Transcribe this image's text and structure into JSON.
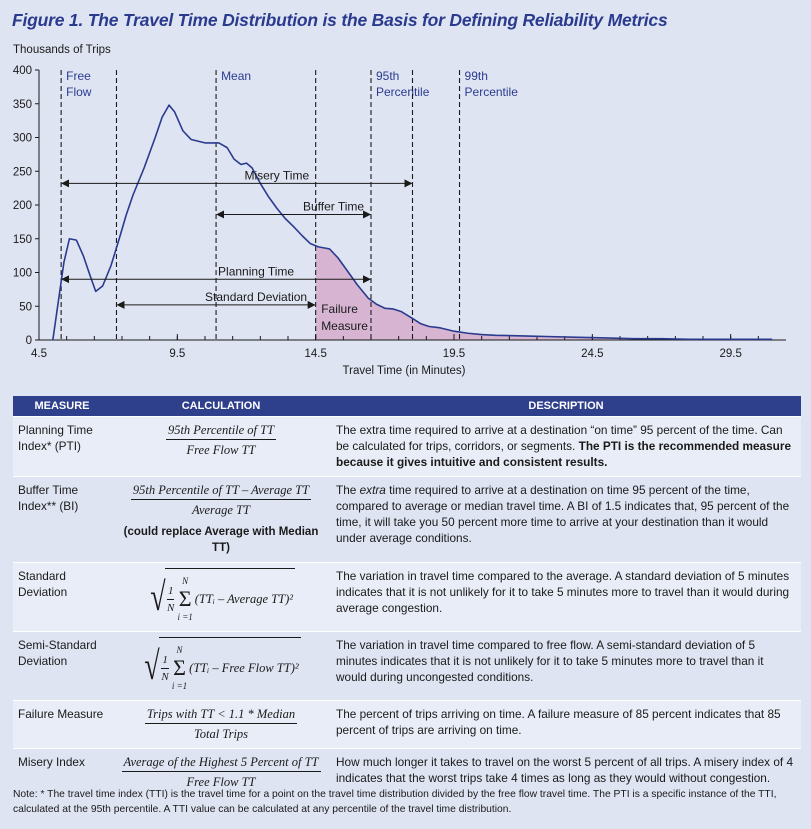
{
  "title": "Figure 1.  The Travel Time Distribution is the Basis for Defining Reliability Metrics",
  "chart_data": {
    "type": "area",
    "ylabel": "Thousands of Trips",
    "xlabel": "Travel Time (in Minutes)",
    "xlim": [
      4.5,
      31.5
    ],
    "ylim": [
      0,
      400
    ],
    "x_ticks": [
      "4.5",
      "9.5",
      "14.5",
      "19.5",
      "24.5",
      "29.5"
    ],
    "y_ticks": [
      "0",
      "50",
      "100",
      "150",
      "200",
      "250",
      "300",
      "350",
      "400"
    ],
    "series": [
      {
        "points": [
          [
            5.0,
            0
          ],
          [
            5.4,
            115
          ],
          [
            5.6,
            150
          ],
          [
            5.85,
            148
          ],
          [
            6.1,
            125
          ],
          [
            6.35,
            95
          ],
          [
            6.55,
            72
          ],
          [
            6.8,
            80
          ],
          [
            7.1,
            110
          ],
          [
            7.4,
            150
          ],
          [
            7.65,
            185
          ],
          [
            7.9,
            215
          ],
          [
            8.3,
            255
          ],
          [
            8.7,
            300
          ],
          [
            8.95,
            330
          ],
          [
            9.2,
            348
          ],
          [
            9.4,
            338
          ],
          [
            9.7,
            310
          ],
          [
            10.0,
            297
          ],
          [
            10.5,
            292
          ],
          [
            11.0,
            292
          ],
          [
            11.3,
            285
          ],
          [
            11.55,
            268
          ],
          [
            11.8,
            260
          ],
          [
            12.0,
            262
          ],
          [
            12.2,
            255
          ],
          [
            12.5,
            232
          ],
          [
            12.8,
            212
          ],
          [
            13.1,
            195
          ],
          [
            13.4,
            180
          ],
          [
            13.7,
            168
          ],
          [
            14.0,
            155
          ],
          [
            14.3,
            143
          ],
          [
            14.6,
            138
          ],
          [
            15.0,
            135
          ],
          [
            15.3,
            122
          ],
          [
            15.6,
            105
          ],
          [
            16.0,
            82
          ],
          [
            16.4,
            62
          ],
          [
            16.7,
            53
          ],
          [
            17.0,
            47
          ],
          [
            17.3,
            46
          ],
          [
            17.6,
            42
          ],
          [
            18.0,
            32
          ],
          [
            18.3,
            24
          ],
          [
            18.6,
            20
          ],
          [
            19.0,
            18
          ],
          [
            19.5,
            13
          ],
          [
            20.0,
            10
          ],
          [
            20.5,
            8
          ],
          [
            21.0,
            7
          ],
          [
            22.0,
            6
          ],
          [
            23.0,
            5
          ],
          [
            24.0,
            4
          ],
          [
            25.0,
            3
          ],
          [
            26.0,
            2
          ],
          [
            27.0,
            2
          ],
          [
            28.0,
            1
          ],
          [
            29.0,
            1
          ],
          [
            30.0,
            1
          ],
          [
            31.0,
            1
          ]
        ]
      }
    ],
    "failure_region_start": 14.5,
    "markers": [
      {
        "x": 5.3,
        "label": "Free Flow",
        "line_top": 400
      },
      {
        "x": 7.3,
        "label": "",
        "line_top": 400
      },
      {
        "x": 10.9,
        "label": "Mean",
        "line_top": 400
      },
      {
        "x": 14.5,
        "label": "",
        "line_top": 400
      },
      {
        "x": 16.5,
        "label": "95th Percentile",
        "line_top": 400
      },
      {
        "x": 18.0,
        "label": "",
        "line_top": 400
      },
      {
        "x": 19.7,
        "label": "99th Percentile",
        "line_top": 400
      }
    ],
    "arrows": [
      {
        "label": "Misery Time",
        "x1": 5.3,
        "x2": 18.0,
        "y": 232
      },
      {
        "label": "Buffer Time",
        "x1": 10.9,
        "x2": 16.5,
        "y": 186
      },
      {
        "label": "Planning Time",
        "x1": 5.3,
        "x2": 16.5,
        "y": 90
      },
      {
        "label": "Standard Deviation",
        "x1": 7.3,
        "x2": 14.5,
        "y": 52
      }
    ],
    "annotations": [
      {
        "text": "Failure",
        "x": 14.7,
        "y": 40
      },
      {
        "text": "Measure",
        "x": 14.7,
        "y": 15
      }
    ],
    "colors": {
      "curve": "#2a3b8f",
      "failure_fill": "#d7b5d2",
      "arrow": "#1a1a1a",
      "marker_text": "#2a3b8f"
    }
  },
  "table": {
    "headers": [
      "MEASURE",
      "CALCULATION",
      "DESCRIPTION"
    ],
    "rows": [
      {
        "measure": "Planning Time Index* (PTI)",
        "calc_num": "95th Percentile of TT",
        "calc_den": "Free Flow TT",
        "desc": "The extra time required to arrive at a destination “on time” 95 percent of the time. Can be calculated for trips, corridors, or segments.",
        "desc_bold": "The PTI is the recommended measure because it gives intuitive and consistent results."
      },
      {
        "measure": "Buffer Time Index** (BI)",
        "calc_num": "95th Percentile of TT – Average TT",
        "calc_den": "Average TT",
        "calc_note": "(could replace Average with Median TT)",
        "desc_pre": "The ",
        "desc_em": "extra",
        "desc": " time required to arrive at a destination on time 95 percent of the time, compared to average or median travel time. A BI of 1.5 indicates that, 95 percent of the time, it will take you 50 percent more time to arrive at your destination than it would under average conditions."
      },
      {
        "measure": "Standard Deviation",
        "sum_top": "N",
        "sum_bottom": "i =1",
        "frac_num": "1",
        "frac_den": "N",
        "term": "(TTᵢ – Average TT)²",
        "desc": "The variation in travel time compared to the average. A standard deviation of 5 minutes indicates that it is not unlikely for it to take 5 minutes more to travel than it would during average congestion."
      },
      {
        "measure": "Semi-Standard Deviation",
        "sum_top": "N",
        "sum_bottom": "i =1",
        "frac_num": "1",
        "frac_den": "N",
        "term": "(TTᵢ – Free Flow TT)²",
        "desc": "The variation in travel time compared to free flow. A semi-standard deviation of 5 minutes indicates that it is not unlikely for it to take 5 minutes more to travel than it would during uncongested conditions."
      },
      {
        "measure": "Failure Measure",
        "calc_num": "Trips with TT < 1.1 * Median",
        "calc_den": "Total Trips",
        "desc": "The percent of trips arriving on time. A failure measure of 85 percent indicates that 85 percent of trips are arriving on time."
      },
      {
        "measure": "Misery Index",
        "calc_num": "Average of the Highest 5 Percent of TT",
        "calc_den": "Free Flow TT",
        "desc": "How much longer it takes to travel on the worst 5 percent of all trips. A misery index of 4 indicates that the worst trips take 4 times as long as they would without congestion."
      }
    ]
  },
  "footnote": "Note: * The travel time index (TTI) is the travel time for a point on the travel time distribution divided by the free flow travel time. The PTI is a specific instance of the TTI, calculated at the 95th percentile. A TTI value can be calculated at any percentile of the travel time distribution."
}
